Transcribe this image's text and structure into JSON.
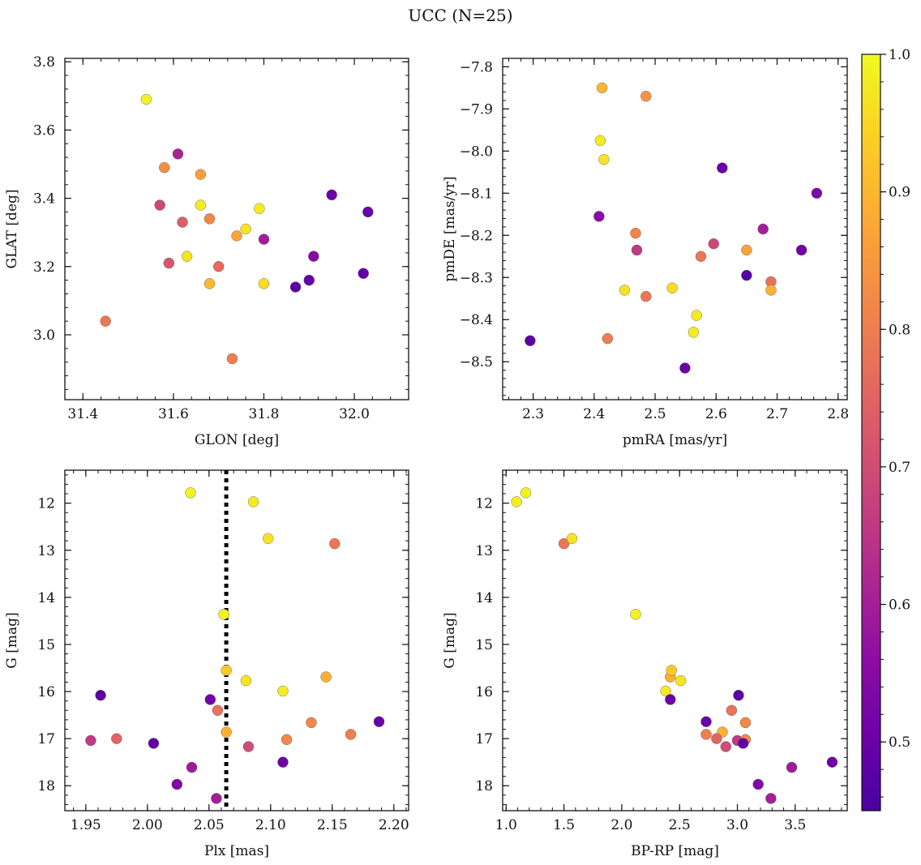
{
  "figure_title": "UCC (N=25)",
  "colorbar": {
    "ticks": [
      "0.5",
      "0.6",
      "0.7",
      "0.8",
      "0.9",
      "1.0"
    ],
    "tick_values": [
      0.5,
      0.6,
      0.7,
      0.8,
      0.9,
      1.0
    ],
    "range": [
      0.45,
      1.0
    ],
    "colormap": "plasma",
    "colors": [
      "#3b2f9b",
      "#7a22b5",
      "#c73f9b",
      "#e97a72",
      "#fbb65c",
      "#f0f451"
    ]
  },
  "chart_data": [
    {
      "type": "scatter",
      "xlabel": "GLON [deg]",
      "ylabel": "GLAT [deg]",
      "xlim": [
        31.36,
        32.12
      ],
      "ylim": [
        2.81,
        3.81
      ],
      "xticks": [
        "31.4",
        "31.6",
        "31.8",
        "32.0"
      ],
      "xtick_values": [
        31.4,
        31.6,
        31.8,
        32.0
      ],
      "yticks": [
        "3.0",
        "3.2",
        "3.4",
        "3.6",
        "3.8"
      ],
      "ytick_values": [
        3.0,
        3.2,
        3.4,
        3.6,
        3.8
      ],
      "y_inverted": false,
      "points": [
        {
          "x": 31.54,
          "y": 3.69,
          "c": 0.99
        },
        {
          "x": 31.61,
          "y": 3.53,
          "c": 0.61
        },
        {
          "x": 31.58,
          "y": 3.49,
          "c": 0.83
        },
        {
          "x": 31.66,
          "y": 3.47,
          "c": 0.86
        },
        {
          "x": 31.57,
          "y": 3.38,
          "c": 0.69
        },
        {
          "x": 31.66,
          "y": 3.38,
          "c": 0.98
        },
        {
          "x": 31.62,
          "y": 3.33,
          "c": 0.74
        },
        {
          "x": 31.68,
          "y": 3.34,
          "c": 0.82
        },
        {
          "x": 31.79,
          "y": 3.37,
          "c": 0.98
        },
        {
          "x": 31.76,
          "y": 3.31,
          "c": 0.97
        },
        {
          "x": 31.74,
          "y": 3.29,
          "c": 0.87
        },
        {
          "x": 31.8,
          "y": 3.28,
          "c": 0.6
        },
        {
          "x": 31.95,
          "y": 3.41,
          "c": 0.5
        },
        {
          "x": 32.03,
          "y": 3.36,
          "c": 0.5
        },
        {
          "x": 31.63,
          "y": 3.23,
          "c": 0.97
        },
        {
          "x": 31.59,
          "y": 3.21,
          "c": 0.72
        },
        {
          "x": 31.7,
          "y": 3.2,
          "c": 0.76
        },
        {
          "x": 31.68,
          "y": 3.15,
          "c": 0.9
        },
        {
          "x": 31.8,
          "y": 3.15,
          "c": 0.96
        },
        {
          "x": 31.91,
          "y": 3.23,
          "c": 0.55
        },
        {
          "x": 31.87,
          "y": 3.14,
          "c": 0.48
        },
        {
          "x": 31.9,
          "y": 3.16,
          "c": 0.49
        },
        {
          "x": 32.02,
          "y": 3.18,
          "c": 0.49
        },
        {
          "x": 31.45,
          "y": 3.04,
          "c": 0.79
        },
        {
          "x": 31.73,
          "y": 2.93,
          "c": 0.8
        }
      ]
    },
    {
      "type": "scatter",
      "xlabel": "pmRA [mas/yr]",
      "ylabel": "pmDE [mas/yr]",
      "xlim": [
        2.25,
        2.815
      ],
      "ylim": [
        -8.59,
        -7.78
      ],
      "xticks": [
        "2.3",
        "2.4",
        "2.5",
        "2.6",
        "2.7",
        "2.8"
      ],
      "xtick_values": [
        2.3,
        2.4,
        2.5,
        2.6,
        2.7,
        2.8
      ],
      "yticks": [
        "−7.8",
        "−7.9",
        "−8.0",
        "−8.1",
        "−8.2",
        "−8.3",
        "−8.4",
        "−8.5"
      ],
      "ytick_values": [
        -7.8,
        -7.9,
        -8.0,
        -8.1,
        -8.2,
        -8.3,
        -8.4,
        -8.5
      ],
      "y_inverted": false,
      "points": [
        {
          "x": 2.413,
          "y": -7.85,
          "c": 0.9
        },
        {
          "x": 2.485,
          "y": -7.87,
          "c": 0.84
        },
        {
          "x": 2.41,
          "y": -7.975,
          "c": 0.98
        },
        {
          "x": 2.416,
          "y": -8.02,
          "c": 0.97
        },
        {
          "x": 2.61,
          "y": -8.04,
          "c": 0.5
        },
        {
          "x": 2.765,
          "y": -8.1,
          "c": 0.53
        },
        {
          "x": 2.408,
          "y": -8.155,
          "c": 0.56
        },
        {
          "x": 2.468,
          "y": -8.195,
          "c": 0.81
        },
        {
          "x": 2.677,
          "y": -8.185,
          "c": 0.6
        },
        {
          "x": 2.596,
          "y": -8.22,
          "c": 0.69
        },
        {
          "x": 2.47,
          "y": -8.235,
          "c": 0.66
        },
        {
          "x": 2.65,
          "y": -8.235,
          "c": 0.87
        },
        {
          "x": 2.74,
          "y": -8.235,
          "c": 0.51
        },
        {
          "x": 2.575,
          "y": -8.25,
          "c": 0.79
        },
        {
          "x": 2.65,
          "y": -8.295,
          "c": 0.47
        },
        {
          "x": 2.69,
          "y": -8.31,
          "c": 0.78
        },
        {
          "x": 2.69,
          "y": -8.33,
          "c": 0.89
        },
        {
          "x": 2.528,
          "y": -8.325,
          "c": 0.96
        },
        {
          "x": 2.45,
          "y": -8.33,
          "c": 0.97
        },
        {
          "x": 2.485,
          "y": -8.345,
          "c": 0.79
        },
        {
          "x": 2.568,
          "y": -8.39,
          "c": 0.98
        },
        {
          "x": 2.563,
          "y": -8.43,
          "c": 0.98
        },
        {
          "x": 2.422,
          "y": -8.445,
          "c": 0.8
        },
        {
          "x": 2.295,
          "y": -8.45,
          "c": 0.48
        },
        {
          "x": 2.549,
          "y": -8.515,
          "c": 0.5
        }
      ]
    },
    {
      "type": "scatter",
      "xlabel": "Plx [mas]",
      "ylabel": "G [mag]",
      "xlim": [
        1.933,
        2.212
      ],
      "ylim": [
        18.53,
        11.3
      ],
      "xticks": [
        "1.95",
        "2.00",
        "2.05",
        "2.10",
        "2.15",
        "2.20"
      ],
      "xtick_values": [
        1.95,
        2.0,
        2.05,
        2.1,
        2.15,
        2.2
      ],
      "yticks": [
        "12",
        "13",
        "14",
        "15",
        "16",
        "17",
        "18"
      ],
      "ytick_values": [
        12,
        13,
        14,
        15,
        16,
        17,
        18
      ],
      "y_inverted": true,
      "vline": 2.064,
      "points": [
        {
          "x": 2.035,
          "y": 11.78,
          "c": 0.99
        },
        {
          "x": 2.086,
          "y": 11.97,
          "c": 0.98
        },
        {
          "x": 2.098,
          "y": 12.75,
          "c": 0.97
        },
        {
          "x": 2.152,
          "y": 12.86,
          "c": 0.79
        },
        {
          "x": 2.062,
          "y": 14.36,
          "c": 0.99
        },
        {
          "x": 2.064,
          "y": 15.55,
          "c": 0.93
        },
        {
          "x": 2.08,
          "y": 15.77,
          "c": 0.97
        },
        {
          "x": 2.145,
          "y": 15.69,
          "c": 0.89
        },
        {
          "x": 2.11,
          "y": 15.99,
          "c": 0.98
        },
        {
          "x": 1.962,
          "y": 16.08,
          "c": 0.48
        },
        {
          "x": 2.051,
          "y": 16.17,
          "c": 0.51
        },
        {
          "x": 2.057,
          "y": 16.4,
          "c": 0.78
        },
        {
          "x": 2.133,
          "y": 16.66,
          "c": 0.82
        },
        {
          "x": 2.188,
          "y": 16.64,
          "c": 0.5
        },
        {
          "x": 2.064,
          "y": 16.86,
          "c": 0.89
        },
        {
          "x": 2.165,
          "y": 16.91,
          "c": 0.8
        },
        {
          "x": 1.954,
          "y": 17.04,
          "c": 0.66
        },
        {
          "x": 1.975,
          "y": 17.0,
          "c": 0.75
        },
        {
          "x": 2.005,
          "y": 17.1,
          "c": 0.49
        },
        {
          "x": 2.113,
          "y": 17.02,
          "c": 0.82
        },
        {
          "x": 2.082,
          "y": 17.17,
          "c": 0.7
        },
        {
          "x": 2.11,
          "y": 17.5,
          "c": 0.51
        },
        {
          "x": 2.036,
          "y": 17.61,
          "c": 0.59
        },
        {
          "x": 2.024,
          "y": 17.97,
          "c": 0.54
        },
        {
          "x": 2.056,
          "y": 18.27,
          "c": 0.6
        }
      ]
    },
    {
      "type": "scatter",
      "xlabel": "BP-RP [mag]",
      "ylabel": "G [mag]",
      "xlim": [
        0.97,
        3.95
      ],
      "ylim": [
        18.53,
        11.3
      ],
      "xticks": [
        "1.0",
        "1.5",
        "2.0",
        "2.5",
        "3.0",
        "3.5"
      ],
      "xtick_values": [
        1.0,
        1.5,
        2.0,
        2.5,
        3.0,
        3.5
      ],
      "yticks": [
        "12",
        "13",
        "14",
        "15",
        "16",
        "17",
        "18"
      ],
      "ytick_values": [
        12,
        13,
        14,
        15,
        16,
        17,
        18
      ],
      "y_inverted": true,
      "points": [
        {
          "x": 1.09,
          "y": 11.97,
          "c": 0.98
        },
        {
          "x": 1.17,
          "y": 11.78,
          "c": 0.99
        },
        {
          "x": 1.5,
          "y": 12.86,
          "c": 0.79
        },
        {
          "x": 1.57,
          "y": 12.75,
          "c": 0.97
        },
        {
          "x": 2.12,
          "y": 14.36,
          "c": 0.99
        },
        {
          "x": 2.38,
          "y": 15.99,
          "c": 0.98
        },
        {
          "x": 2.42,
          "y": 15.69,
          "c": 0.89
        },
        {
          "x": 2.43,
          "y": 15.55,
          "c": 0.93
        },
        {
          "x": 2.51,
          "y": 15.77,
          "c": 0.97
        },
        {
          "x": 2.42,
          "y": 16.17,
          "c": 0.51
        },
        {
          "x": 3.01,
          "y": 16.08,
          "c": 0.48
        },
        {
          "x": 2.73,
          "y": 16.64,
          "c": 0.5
        },
        {
          "x": 2.95,
          "y": 16.4,
          "c": 0.78
        },
        {
          "x": 3.07,
          "y": 16.66,
          "c": 0.82
        },
        {
          "x": 2.73,
          "y": 16.91,
          "c": 0.8
        },
        {
          "x": 2.87,
          "y": 16.86,
          "c": 0.89
        },
        {
          "x": 2.82,
          "y": 17.0,
          "c": 0.75
        },
        {
          "x": 3.0,
          "y": 17.04,
          "c": 0.66
        },
        {
          "x": 3.07,
          "y": 17.02,
          "c": 0.82
        },
        {
          "x": 3.05,
          "y": 17.1,
          "c": 0.49
        },
        {
          "x": 2.9,
          "y": 17.17,
          "c": 0.7
        },
        {
          "x": 3.47,
          "y": 17.61,
          "c": 0.59
        },
        {
          "x": 3.82,
          "y": 17.5,
          "c": 0.51
        },
        {
          "x": 3.18,
          "y": 17.97,
          "c": 0.54
        },
        {
          "x": 3.29,
          "y": 18.27,
          "c": 0.6
        }
      ]
    }
  ]
}
